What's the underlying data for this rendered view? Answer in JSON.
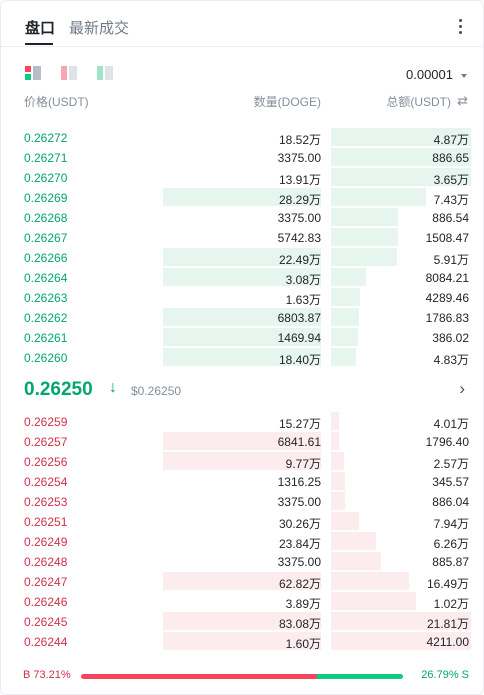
{
  "tabs": {
    "order_book": "盘口",
    "recent_trades": "最新成交"
  },
  "precision": "0.00001",
  "headers": {
    "price": "价格(USDT)",
    "quantity": "数量(DOGE)",
    "total": "总额(USDT)"
  },
  "colors": {
    "buy": "#03a66d",
    "sell": "#cf304a",
    "buy_bar": "#e6f6ef",
    "sell_bar": "#fdeced"
  },
  "bids": [
    {
      "price": "0.26272",
      "qty": "18.52万",
      "total": "4.87万",
      "qty_fill": 0.0,
      "total_fill": 1.0
    },
    {
      "price": "0.26271",
      "qty": "3375.00",
      "total": "886.65",
      "qty_fill": 0.0,
      "total_fill": 1.0
    },
    {
      "price": "0.26270",
      "qty": "13.91万",
      "total": "3.65万",
      "qty_fill": 0.0,
      "total_fill": 1.0
    },
    {
      "price": "0.26269",
      "qty": "28.29万",
      "total": "7.43万",
      "qty_fill": 1.0,
      "total_fill": 0.68
    },
    {
      "price": "0.26268",
      "qty": "3375.00",
      "total": "886.54",
      "qty_fill": 0.0,
      "total_fill": 0.48
    },
    {
      "price": "0.26267",
      "qty": "5742.83",
      "total": "1508.47",
      "qty_fill": 0.0,
      "total_fill": 0.48
    },
    {
      "price": "0.26266",
      "qty": "22.49万",
      "total": "5.91万",
      "qty_fill": 1.0,
      "total_fill": 0.47
    },
    {
      "price": "0.26264",
      "qty": "3.08万",
      "total": "8084.21",
      "qty_fill": 1.0,
      "total_fill": 0.25
    },
    {
      "price": "0.26263",
      "qty": "1.63万",
      "total": "4289.46",
      "qty_fill": 0.0,
      "total_fill": 0.21
    },
    {
      "price": "0.26262",
      "qty": "6803.87",
      "total": "1786.83",
      "qty_fill": 1.0,
      "total_fill": 0.2
    },
    {
      "price": "0.26261",
      "qty": "1469.94",
      "total": "386.02",
      "qty_fill": 1.0,
      "total_fill": 0.19
    },
    {
      "price": "0.26260",
      "qty": "18.40万",
      "total": "4.83万",
      "qty_fill": 1.0,
      "total_fill": 0.18
    }
  ],
  "last_price": "0.26250",
  "last_price_usd": "$0.26250",
  "asks": [
    {
      "price": "0.26259",
      "qty": "15.27万",
      "total": "4.01万",
      "qty_fill": 0.0,
      "total_fill": 0.06
    },
    {
      "price": "0.26257",
      "qty": "6841.61",
      "total": "1796.40",
      "qty_fill": 1.0,
      "total_fill": 0.06
    },
    {
      "price": "0.26256",
      "qty": "9.77万",
      "total": "2.57万",
      "qty_fill": 1.0,
      "total_fill": 0.09
    },
    {
      "price": "0.26254",
      "qty": "1316.25",
      "total": "345.57",
      "qty_fill": 0.0,
      "total_fill": 0.1
    },
    {
      "price": "0.26253",
      "qty": "3375.00",
      "total": "886.04",
      "qty_fill": 0.0,
      "total_fill": 0.1
    },
    {
      "price": "0.26251",
      "qty": "30.26万",
      "total": "7.94万",
      "qty_fill": 0.0,
      "total_fill": 0.2
    },
    {
      "price": "0.26249",
      "qty": "23.84万",
      "total": "6.26万",
      "qty_fill": 0.0,
      "total_fill": 0.32
    },
    {
      "price": "0.26248",
      "qty": "3375.00",
      "total": "885.87",
      "qty_fill": 0.0,
      "total_fill": 0.36
    },
    {
      "price": "0.26247",
      "qty": "62.82万",
      "total": "16.49万",
      "qty_fill": 1.0,
      "total_fill": 0.56
    },
    {
      "price": "0.26246",
      "qty": "3.89万",
      "total": "1.02万",
      "qty_fill": 0.0,
      "total_fill": 0.61
    },
    {
      "price": "0.26245",
      "qty": "83.08万",
      "total": "21.81万",
      "qty_fill": 1.0,
      "total_fill": 1.0
    },
    {
      "price": "0.26244",
      "qty": "1.60万",
      "total": "4211.00",
      "qty_fill": 1.0,
      "total_fill": 1.0
    }
  ],
  "ratio": {
    "buy_label": "B 73.21%",
    "sell_label": "26.79% S",
    "buy_pct": 73.21,
    "sell_pct": 26.79
  }
}
